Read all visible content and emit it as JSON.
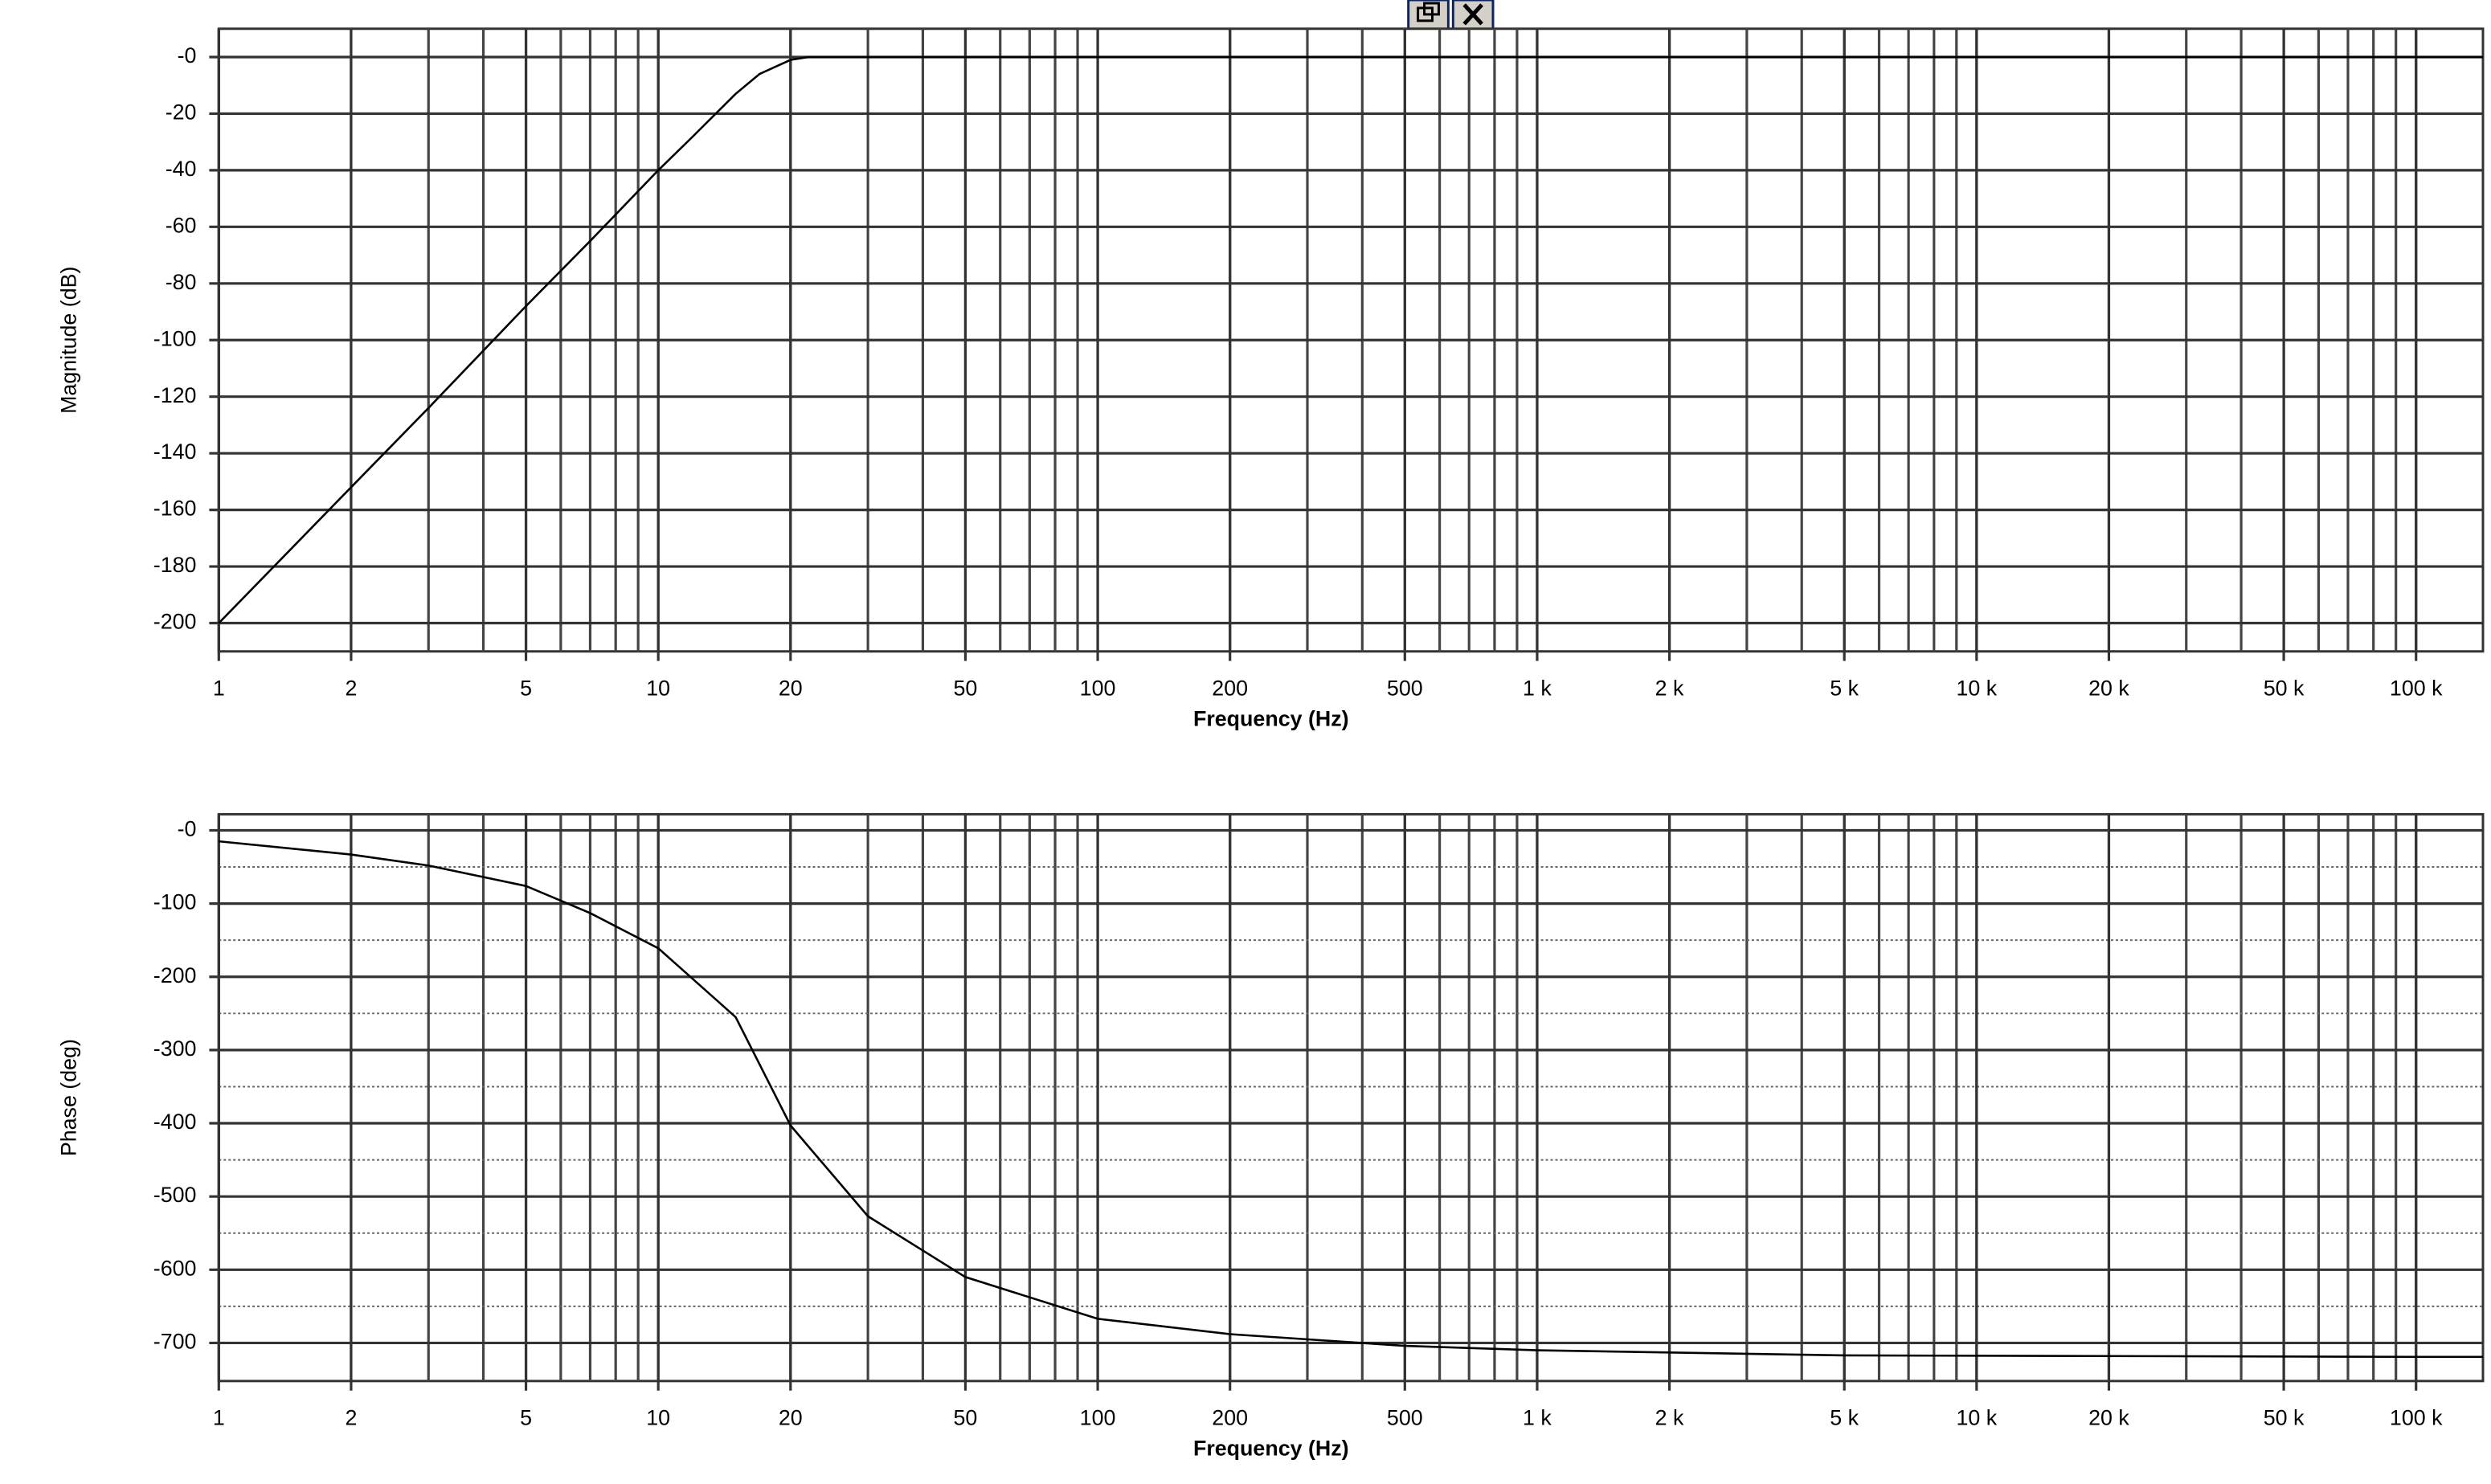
{
  "chart_data": [
    {
      "type": "line",
      "xscale": "log",
      "grid": true,
      "ygrid_minor": false,
      "ylabel": "Magnitude (dB)",
      "xlabel": "Frequency (Hz)",
      "x": [
        1,
        2,
        3,
        5,
        7,
        10,
        12,
        15,
        17,
        20,
        22,
        100,
        1000,
        10000,
        100000,
        142000
      ],
      "values": [
        -200,
        -152,
        -124,
        -88,
        -65,
        -40,
        -28,
        -13,
        -6,
        -1,
        0,
        0,
        0,
        0,
        0,
        0
      ],
      "color": "#000000",
      "xlim": [
        1,
        142000
      ],
      "ylim": [
        -210,
        10
      ],
      "xticks": [
        1,
        2,
        5,
        10,
        20,
        50,
        100,
        200,
        500,
        {
          "value": 1000,
          "label": "1 k"
        },
        {
          "value": 2000,
          "label": "2 k"
        },
        {
          "value": 5000,
          "label": "5 k"
        },
        {
          "value": 10000,
          "label": "10 k"
        },
        {
          "value": 20000,
          "label": "20 k"
        },
        {
          "value": 50000,
          "label": "50 k"
        },
        {
          "value": 100000,
          "label": "100 k"
        }
      ],
      "yticks": [
        {
          "value": 0,
          "label": "-0"
        },
        -20,
        -40,
        -60,
        -80,
        -100,
        -120,
        -140,
        -160,
        -180,
        -200
      ]
    },
    {
      "type": "line",
      "xscale": "log",
      "grid": true,
      "ygrid_minor": true,
      "ylabel": "Phase (deg)",
      "xlabel": "Frequency (Hz)",
      "x": [
        1,
        2,
        3,
        5,
        7,
        10,
        15,
        20,
        30,
        50,
        100,
        200,
        500,
        1000,
        5000,
        100000,
        142000
      ],
      "values": [
        -15,
        -33,
        -48,
        -76,
        -113,
        -161,
        -255,
        -403,
        -527,
        -610,
        -667,
        -688,
        -704,
        -710,
        -717,
        -719,
        -719
      ],
      "color": "#000000",
      "xlim": [
        1,
        142000
      ],
      "ylim": [
        -752,
        22
      ],
      "xticks": [
        1,
        2,
        5,
        10,
        20,
        50,
        100,
        200,
        500,
        {
          "value": 1000,
          "label": "1 k"
        },
        {
          "value": 2000,
          "label": "2 k"
        },
        {
          "value": 5000,
          "label": "5 k"
        },
        {
          "value": 10000,
          "label": "10 k"
        },
        {
          "value": 20000,
          "label": "20 k"
        },
        {
          "value": 50000,
          "label": "50 k"
        },
        {
          "value": 100000,
          "label": "100 k"
        }
      ],
      "yticks": [
        {
          "value": 0,
          "label": "-0"
        },
        -100,
        -200,
        -300,
        -400,
        -500,
        -600,
        -700
      ]
    }
  ]
}
